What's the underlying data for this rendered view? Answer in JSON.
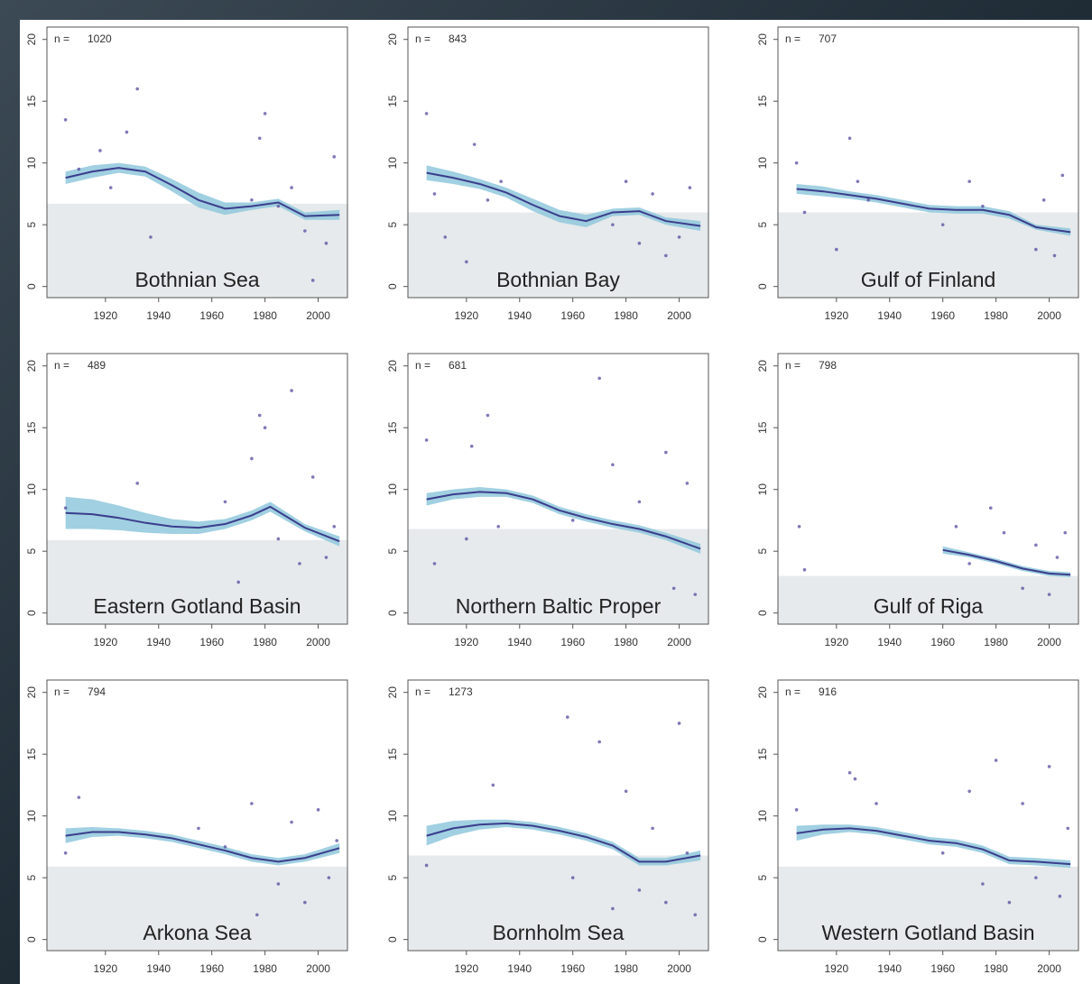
{
  "chart_data": [
    {
      "type": "scatter",
      "title": "Bothnian Sea",
      "n_label": "n =",
      "n": 1020,
      "xlim": [
        1898,
        2011
      ],
      "ylim": [
        -0.9,
        21
      ],
      "xticks": [
        1920,
        1940,
        1960,
        1980,
        2000
      ],
      "yticks": [
        0,
        5,
        10,
        15,
        20
      ],
      "threshold": 6.7,
      "color": "#4b3f9a",
      "band_color": "#8fc8dc",
      "points": {
        "x": [
          1905,
          1910,
          1918,
          1922,
          1928,
          1932,
          1937,
          1975,
          1978,
          1980,
          1985,
          1990,
          1995,
          1998,
          2003,
          2006
        ],
        "values": [
          13.5,
          9.5,
          11.0,
          8.0,
          12.5,
          16.0,
          4.0,
          7.0,
          12.0,
          14.0,
          6.5,
          8.0,
          4.5,
          0.5,
          3.5,
          10.5
        ]
      },
      "trend": {
        "x": [
          1905,
          1915,
          1925,
          1935,
          1945,
          1955,
          1965,
          1975,
          1985,
          1995,
          2008
        ],
        "values": [
          8.8,
          9.3,
          9.6,
          9.3,
          8.2,
          7.0,
          6.3,
          6.5,
          6.8,
          5.7,
          5.8
        ],
        "ci": [
          0.5,
          0.5,
          0.4,
          0.4,
          0.5,
          0.6,
          0.5,
          0.3,
          0.3,
          0.3,
          0.4
        ]
      }
    },
    {
      "type": "scatter",
      "title": "Bothnian Bay",
      "n_label": "n =",
      "n": 843,
      "xlim": [
        1898,
        2011
      ],
      "ylim": [
        -0.9,
        21
      ],
      "xticks": [
        1920,
        1940,
        1960,
        1980,
        2000
      ],
      "yticks": [
        0,
        5,
        10,
        15,
        20
      ],
      "threshold": 6.0,
      "color": "#4b3f9a",
      "band_color": "#8fc8dc",
      "points": {
        "x": [
          1905,
          1908,
          1912,
          1920,
          1923,
          1928,
          1933,
          1975,
          1980,
          1985,
          1990,
          1995,
          2000,
          2004
        ],
        "values": [
          14.0,
          7.5,
          4.0,
          2.0,
          11.5,
          7.0,
          8.5,
          5.0,
          8.5,
          3.5,
          7.5,
          2.5,
          4.0,
          8.0
        ]
      },
      "trend": {
        "x": [
          1905,
          1915,
          1925,
          1935,
          1945,
          1955,
          1965,
          1975,
          1985,
          1995,
          2008
        ],
        "values": [
          9.2,
          8.8,
          8.3,
          7.6,
          6.6,
          5.7,
          5.3,
          6.0,
          6.1,
          5.3,
          4.9
        ],
        "ci": [
          0.6,
          0.5,
          0.4,
          0.4,
          0.5,
          0.5,
          0.5,
          0.3,
          0.3,
          0.3,
          0.4
        ]
      }
    },
    {
      "type": "scatter",
      "title": "Gulf of Finland",
      "n_label": "n =",
      "n": 707,
      "xlim": [
        1898,
        2011
      ],
      "ylim": [
        -0.9,
        21
      ],
      "xticks": [
        1920,
        1940,
        1960,
        1980,
        2000
      ],
      "yticks": [
        0,
        5,
        10,
        15,
        20
      ],
      "threshold": 6.0,
      "color": "#4b3f9a",
      "band_color": "#8fc8dc",
      "points": {
        "x": [
          1905,
          1908,
          1920,
          1925,
          1928,
          1932,
          1960,
          1970,
          1975,
          1995,
          1998,
          2002,
          2005
        ],
        "values": [
          10.0,
          6.0,
          3.0,
          12.0,
          8.5,
          7.0,
          5.0,
          8.5,
          6.5,
          3.0,
          7.0,
          2.5,
          9.0
        ]
      },
      "trend": {
        "x": [
          1905,
          1915,
          1925,
          1935,
          1945,
          1955,
          1965,
          1975,
          1985,
          1995,
          2008
        ],
        "values": [
          7.9,
          7.7,
          7.4,
          7.1,
          6.7,
          6.3,
          6.2,
          6.2,
          5.8,
          4.8,
          4.4
        ],
        "ci": [
          0.4,
          0.4,
          0.3,
          0.3,
          0.3,
          0.3,
          0.3,
          0.3,
          0.3,
          0.2,
          0.3
        ]
      }
    },
    {
      "type": "scatter",
      "title": "Eastern Gotland Basin",
      "n_label": "n =",
      "n": 489,
      "xlim": [
        1898,
        2011
      ],
      "ylim": [
        -0.9,
        21
      ],
      "xticks": [
        1920,
        1940,
        1960,
        1980,
        2000
      ],
      "yticks": [
        0,
        5,
        10,
        15,
        20
      ],
      "threshold": 5.9,
      "color": "#4b3f9a",
      "band_color": "#8fc8dc",
      "points": {
        "x": [
          1905,
          1932,
          1965,
          1970,
          1975,
          1978,
          1980,
          1985,
          1990,
          1993,
          1998,
          2003,
          2006
        ],
        "values": [
          8.5,
          10.5,
          9.0,
          2.5,
          12.5,
          16.0,
          15.0,
          6.0,
          18.0,
          4.0,
          11.0,
          4.5,
          7.0
        ]
      },
      "trend": {
        "x": [
          1905,
          1915,
          1925,
          1935,
          1945,
          1955,
          1965,
          1975,
          1982,
          1995,
          2008
        ],
        "values": [
          8.1,
          8.0,
          7.7,
          7.3,
          7.0,
          6.9,
          7.2,
          7.9,
          8.6,
          6.9,
          5.8
        ],
        "ci": [
          1.3,
          1.2,
          1.0,
          0.8,
          0.6,
          0.5,
          0.4,
          0.4,
          0.4,
          0.3,
          0.4
        ]
      }
    },
    {
      "type": "scatter",
      "title": "Northern Baltic Proper",
      "n_label": "n =",
      "n": 681,
      "xlim": [
        1898,
        2011
      ],
      "ylim": [
        -0.9,
        21
      ],
      "xticks": [
        1920,
        1940,
        1960,
        1980,
        2000
      ],
      "yticks": [
        0,
        5,
        10,
        15,
        20
      ],
      "threshold": 6.8,
      "color": "#4b3f9a",
      "band_color": "#8fc8dc",
      "points": {
        "x": [
          1905,
          1908,
          1920,
          1922,
          1928,
          1932,
          1960,
          1970,
          1975,
          1985,
          1995,
          1998,
          2003,
          2006
        ],
        "values": [
          14.0,
          4.0,
          6.0,
          13.5,
          16.0,
          7.0,
          7.5,
          19.0,
          12.0,
          9.0,
          13.0,
          2.0,
          10.5,
          1.5
        ]
      },
      "trend": {
        "x": [
          1905,
          1915,
          1925,
          1935,
          1945,
          1955,
          1965,
          1975,
          1985,
          1995,
          2008
        ],
        "values": [
          9.2,
          9.6,
          9.8,
          9.7,
          9.2,
          8.3,
          7.7,
          7.2,
          6.8,
          6.2,
          5.2
        ],
        "ci": [
          0.5,
          0.4,
          0.4,
          0.3,
          0.3,
          0.3,
          0.3,
          0.3,
          0.3,
          0.3,
          0.4
        ]
      }
    },
    {
      "type": "scatter",
      "title": "Gulf of Riga",
      "n_label": "n =",
      "n": 798,
      "xlim": [
        1898,
        2011
      ],
      "ylim": [
        -0.9,
        21
      ],
      "xticks": [
        1920,
        1940,
        1960,
        1980,
        2000
      ],
      "yticks": [
        0,
        5,
        10,
        15,
        20
      ],
      "threshold": 3.0,
      "color": "#4b3f9a",
      "band_color": "#8fc8dc",
      "points": {
        "x": [
          1906,
          1908,
          1965,
          1970,
          1978,
          1983,
          1990,
          1995,
          2000,
          2003,
          2006
        ],
        "values": [
          7.0,
          3.5,
          7.0,
          4.0,
          8.5,
          6.5,
          2.0,
          5.5,
          1.5,
          4.5,
          6.5
        ]
      },
      "trend": {
        "x": [
          1960,
          1970,
          1980,
          1990,
          2000,
          2008
        ],
        "values": [
          5.1,
          4.7,
          4.2,
          3.6,
          3.2,
          3.1
        ],
        "ci": [
          0.3,
          0.2,
          0.2,
          0.2,
          0.2,
          0.2
        ]
      }
    },
    {
      "type": "scatter",
      "title": "Arkona Sea",
      "n_label": "n =",
      "n": 794,
      "xlim": [
        1898,
        2011
      ],
      "ylim": [
        -0.9,
        21
      ],
      "xticks": [
        1920,
        1940,
        1960,
        1980,
        2000
      ],
      "yticks": [
        0,
        5,
        10,
        15,
        20
      ],
      "threshold": 5.9,
      "color": "#4b3f9a",
      "band_color": "#8fc8dc",
      "points": {
        "x": [
          1905,
          1910,
          1955,
          1965,
          1975,
          1977,
          1985,
          1990,
          1995,
          2000,
          2004,
          2007
        ],
        "values": [
          7.0,
          11.5,
          9.0,
          7.5,
          11.0,
          2.0,
          4.5,
          9.5,
          3.0,
          10.5,
          5.0,
          8.0
        ]
      },
      "trend": {
        "x": [
          1905,
          1915,
          1925,
          1935,
          1945,
          1955,
          1965,
          1975,
          1985,
          1995,
          2008
        ],
        "values": [
          8.4,
          8.7,
          8.7,
          8.5,
          8.2,
          7.7,
          7.2,
          6.6,
          6.3,
          6.6,
          7.4
        ],
        "ci": [
          0.6,
          0.4,
          0.3,
          0.3,
          0.3,
          0.3,
          0.3,
          0.3,
          0.3,
          0.3,
          0.4
        ]
      }
    },
    {
      "type": "scatter",
      "title": "Bornholm Sea",
      "n_label": "n =",
      "n": 1273,
      "xlim": [
        1898,
        2011
      ],
      "ylim": [
        -0.9,
        21
      ],
      "xticks": [
        1920,
        1940,
        1960,
        1980,
        2000
      ],
      "yticks": [
        0,
        5,
        10,
        15,
        20
      ],
      "threshold": 6.8,
      "color": "#4b3f9a",
      "band_color": "#8fc8dc",
      "points": {
        "x": [
          1905,
          1930,
          1958,
          1960,
          1970,
          1975,
          1980,
          1985,
          1990,
          1995,
          2000,
          2003,
          2006
        ],
        "values": [
          6.0,
          12.5,
          18.0,
          5.0,
          16.0,
          2.5,
          12.0,
          4.0,
          9.0,
          3.0,
          17.5,
          7.0,
          2.0
        ]
      },
      "trend": {
        "x": [
          1905,
          1915,
          1925,
          1935,
          1945,
          1955,
          1965,
          1975,
          1985,
          1995,
          2008
        ],
        "values": [
          8.4,
          9.0,
          9.3,
          9.4,
          9.2,
          8.8,
          8.3,
          7.6,
          6.3,
          6.3,
          6.8
        ],
        "ci": [
          0.8,
          0.6,
          0.4,
          0.3,
          0.3,
          0.3,
          0.3,
          0.3,
          0.3,
          0.3,
          0.4
        ]
      }
    },
    {
      "type": "scatter",
      "title": "Western Gotland Basin",
      "n_label": "n =",
      "n": 916,
      "xlim": [
        1898,
        2011
      ],
      "ylim": [
        -0.9,
        21
      ],
      "xticks": [
        1920,
        1940,
        1960,
        1980,
        2000
      ],
      "yticks": [
        0,
        5,
        10,
        15,
        20
      ],
      "threshold": 5.9,
      "color": "#4b3f9a",
      "band_color": "#8fc8dc",
      "points": {
        "x": [
          1905,
          1925,
          1927,
          1935,
          1960,
          1970,
          1975,
          1980,
          1985,
          1990,
          1995,
          2000,
          2004,
          2007
        ],
        "values": [
          10.5,
          13.5,
          13.0,
          11.0,
          7.0,
          12.0,
          4.5,
          14.5,
          3.0,
          11.0,
          5.0,
          14.0,
          3.5,
          9.0
        ]
      },
      "trend": {
        "x": [
          1905,
          1915,
          1925,
          1935,
          1945,
          1955,
          1965,
          1975,
          1985,
          1995,
          2008
        ],
        "values": [
          8.6,
          8.9,
          9.0,
          8.8,
          8.4,
          8.0,
          7.8,
          7.3,
          6.4,
          6.3,
          6.1
        ],
        "ci": [
          0.6,
          0.4,
          0.3,
          0.3,
          0.3,
          0.3,
          0.3,
          0.3,
          0.3,
          0.3,
          0.3
        ]
      }
    }
  ]
}
